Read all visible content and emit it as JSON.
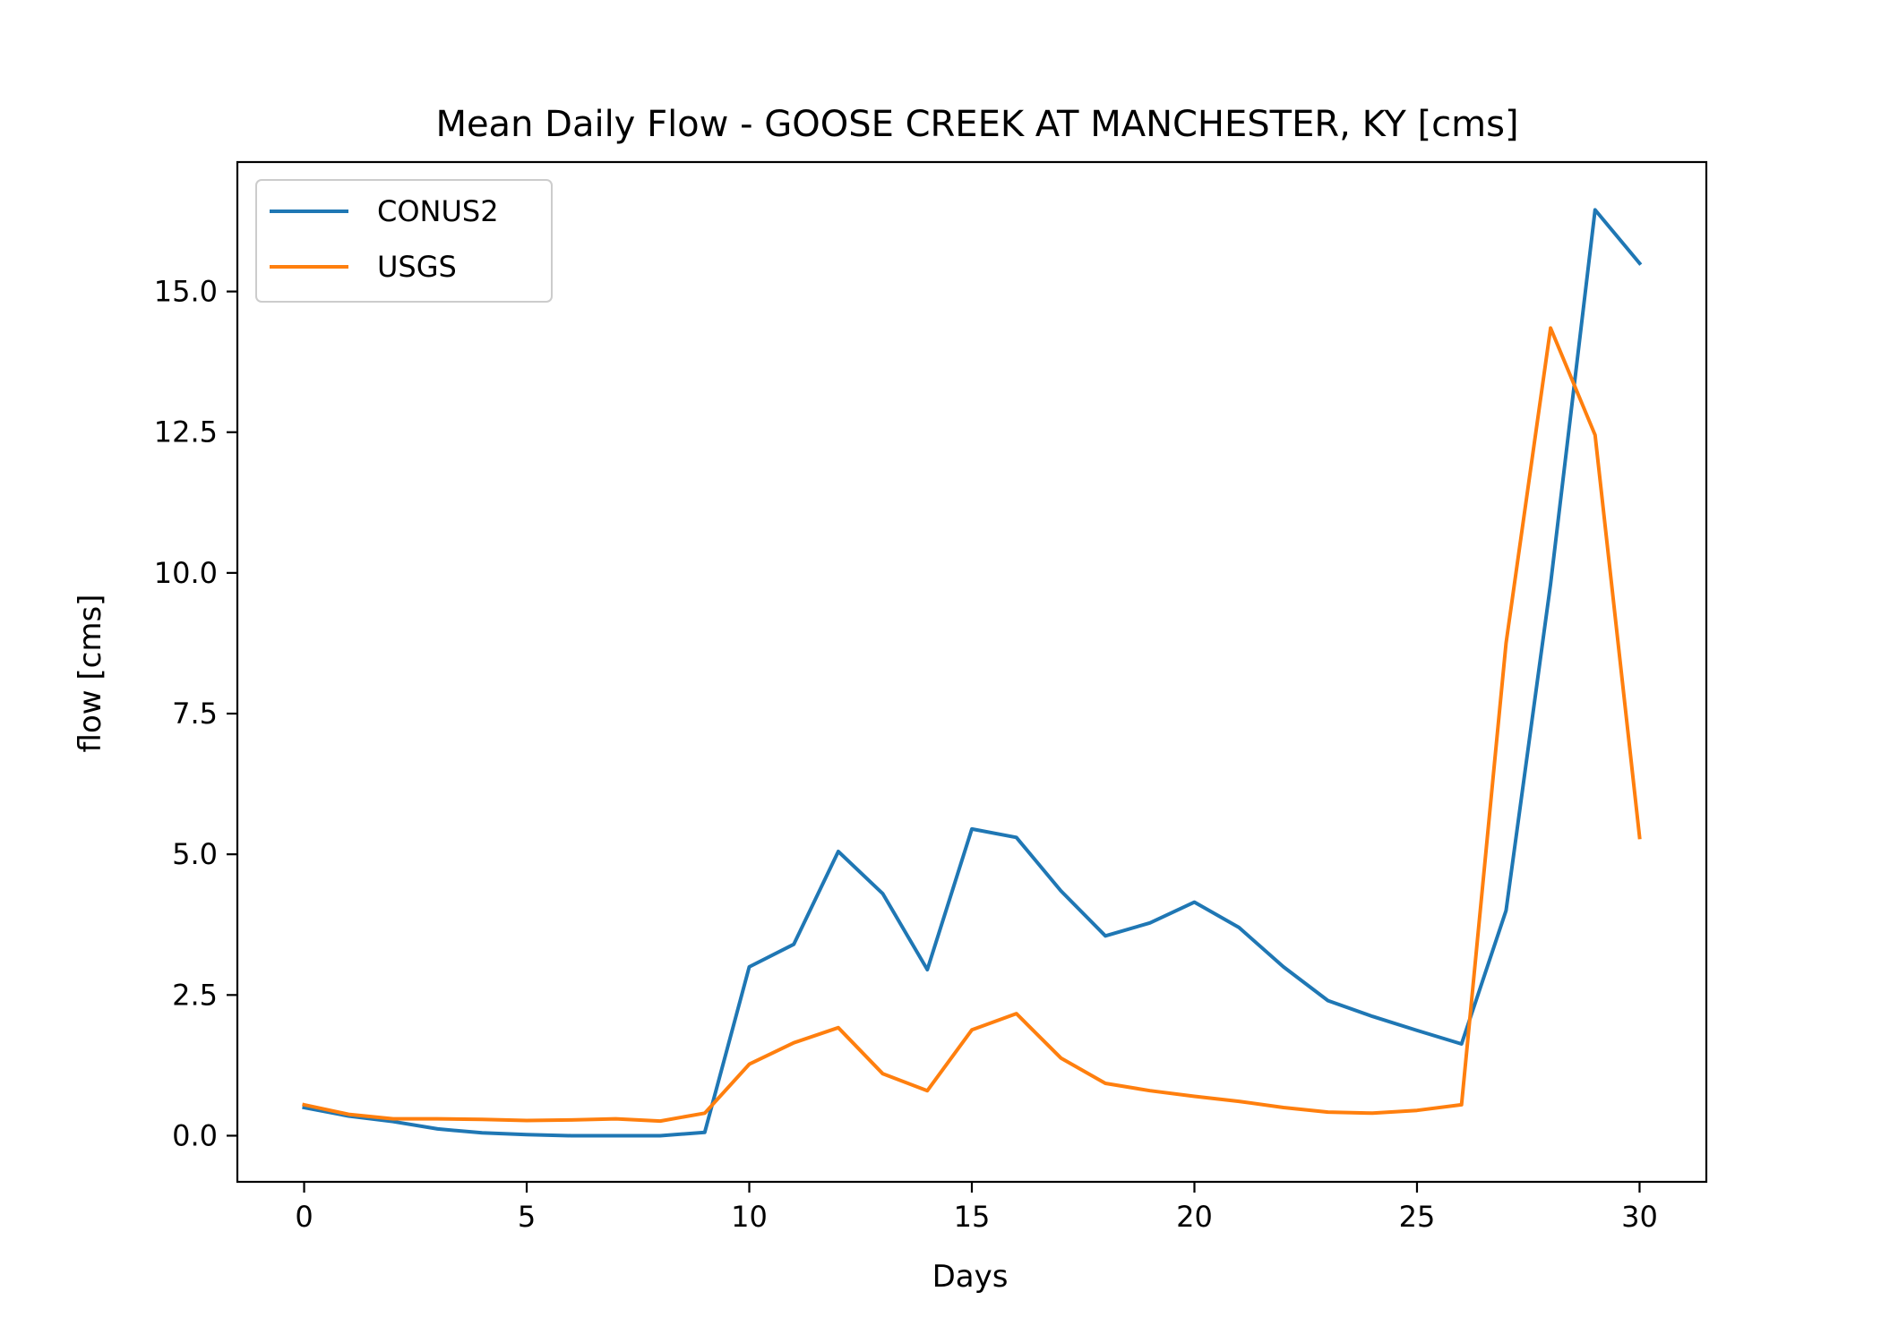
{
  "chart_data": {
    "type": "line",
    "title": "Mean Daily Flow - GOOSE CREEK AT MANCHESTER, KY [cms]",
    "xlabel": "Days",
    "ylabel": "flow [cms]",
    "xlim": [
      -1.5,
      31.5
    ],
    "ylim": [
      -0.82,
      17.3
    ],
    "xticks": [
      0,
      5,
      10,
      15,
      20,
      25,
      30
    ],
    "xtick_labels": [
      "0",
      "5",
      "10",
      "15",
      "20",
      "25",
      "30"
    ],
    "yticks": [
      0,
      2.5,
      5,
      7.5,
      10,
      12.5,
      15
    ],
    "ytick_labels": [
      "0.0",
      "2.5",
      "5.0",
      "7.5",
      "10.0",
      "12.5",
      "15.0"
    ],
    "grid": false,
    "legend_position": "upper-left",
    "x": [
      0,
      1,
      2,
      3,
      4,
      5,
      6,
      7,
      8,
      9,
      10,
      11,
      12,
      13,
      14,
      15,
      16,
      17,
      18,
      19,
      20,
      21,
      22,
      23,
      24,
      25,
      26,
      27,
      28,
      29,
      30
    ],
    "series": [
      {
        "name": "CONUS2",
        "color": "#1f77b4",
        "values": [
          0.5,
          0.35,
          0.25,
          0.12,
          0.05,
          0.02,
          0.0,
          0.0,
          0.0,
          0.06,
          3.0,
          3.4,
          5.05,
          4.3,
          2.95,
          5.45,
          5.3,
          4.35,
          3.55,
          3.78,
          4.15,
          3.7,
          3.0,
          2.4,
          2.12,
          1.87,
          1.63,
          4.0,
          9.8,
          16.45,
          15.5
        ]
      },
      {
        "name": "USGS",
        "color": "#ff7f0e",
        "values": [
          0.55,
          0.38,
          0.3,
          0.3,
          0.29,
          0.27,
          0.28,
          0.3,
          0.26,
          0.4,
          1.27,
          1.65,
          1.92,
          1.1,
          0.8,
          1.88,
          2.17,
          1.38,
          0.93,
          0.8,
          0.7,
          0.61,
          0.5,
          0.42,
          0.4,
          0.45,
          0.55,
          8.75,
          14.35,
          12.45,
          5.3
        ]
      }
    ]
  }
}
